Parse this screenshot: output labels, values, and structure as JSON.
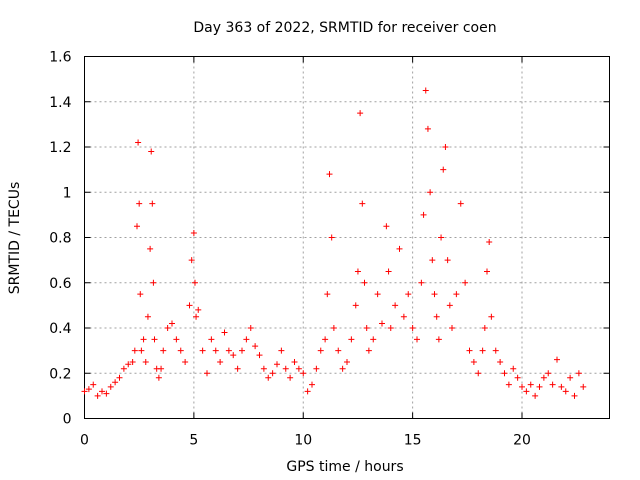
{
  "chart_data": {
    "type": "scatter",
    "title": "Day 363 of 2022, SRMTID for receiver coen",
    "xlabel": "GPS time / hours",
    "ylabel": "SRMTID / TECUs",
    "xlim": [
      0,
      24
    ],
    "ylim": [
      0,
      1.6
    ],
    "xticks": [
      0,
      5,
      10,
      15,
      20
    ],
    "xtick_labels": [
      "0",
      "5",
      "10",
      "15",
      "20"
    ],
    "yticks": [
      0,
      0.2,
      0.4,
      0.6,
      0.8,
      1,
      1.2,
      1.4,
      1.6
    ],
    "ytick_labels": [
      "0",
      "0.2",
      "0.4",
      "0.6",
      "0.8",
      "1",
      "1.2",
      "1.4",
      "1.6"
    ],
    "grid": true,
    "marker": "+",
    "color": "#ff0000",
    "series": [
      {
        "name": "SRMTID",
        "x": [
          0.0,
          0.2,
          0.4,
          0.6,
          0.8,
          1.0,
          1.2,
          1.4,
          1.6,
          1.8,
          2.0,
          2.2,
          2.3,
          2.4,
          2.45,
          2.5,
          2.55,
          2.6,
          2.7,
          2.8,
          2.9,
          3.0,
          3.05,
          3.1,
          3.15,
          3.2,
          3.3,
          3.4,
          3.5,
          3.6,
          3.8,
          4.0,
          4.2,
          4.4,
          4.6,
          4.8,
          4.9,
          5.0,
          5.05,
          5.1,
          5.2,
          5.4,
          5.6,
          5.8,
          6.0,
          6.2,
          6.4,
          6.6,
          6.8,
          7.0,
          7.2,
          7.4,
          7.6,
          7.8,
          8.0,
          8.2,
          8.4,
          8.6,
          8.8,
          9.0,
          9.2,
          9.4,
          9.6,
          9.8,
          10.0,
          10.2,
          10.4,
          10.6,
          10.8,
          11.0,
          11.1,
          11.2,
          11.3,
          11.4,
          11.6,
          11.8,
          12.0,
          12.2,
          12.4,
          12.5,
          12.6,
          12.7,
          12.8,
          12.9,
          13.0,
          13.2,
          13.4,
          13.6,
          13.8,
          13.9,
          14.0,
          14.2,
          14.4,
          14.6,
          14.8,
          15.0,
          15.2,
          15.4,
          15.5,
          15.6,
          15.7,
          15.8,
          15.9,
          16.0,
          16.1,
          16.2,
          16.3,
          16.4,
          16.5,
          16.6,
          16.7,
          16.8,
          17.0,
          17.2,
          17.4,
          17.6,
          17.8,
          18.0,
          18.2,
          18.3,
          18.4,
          18.5,
          18.6,
          18.8,
          19.0,
          19.2,
          19.4,
          19.6,
          19.8,
          20.0,
          20.2,
          20.4,
          20.6,
          20.8,
          21.0,
          21.2,
          21.4,
          21.6,
          21.8,
          22.0,
          22.2,
          22.4,
          22.6,
          22.8
        ],
        "y": [
          0.12,
          0.13,
          0.15,
          0.1,
          0.12,
          0.11,
          0.14,
          0.16,
          0.18,
          0.22,
          0.24,
          0.25,
          0.3,
          0.85,
          1.22,
          0.95,
          0.55,
          0.3,
          0.35,
          0.25,
          0.45,
          0.75,
          1.18,
          0.95,
          0.6,
          0.35,
          0.22,
          0.18,
          0.22,
          0.3,
          0.4,
          0.42,
          0.35,
          0.3,
          0.25,
          0.5,
          0.7,
          0.82,
          0.6,
          0.45,
          0.48,
          0.3,
          0.2,
          0.35,
          0.3,
          0.25,
          0.38,
          0.3,
          0.28,
          0.22,
          0.3,
          0.35,
          0.4,
          0.32,
          0.28,
          0.22,
          0.18,
          0.2,
          0.24,
          0.3,
          0.22,
          0.18,
          0.25,
          0.22,
          0.2,
          0.12,
          0.15,
          0.22,
          0.3,
          0.35,
          0.55,
          1.08,
          0.8,
          0.4,
          0.3,
          0.22,
          0.25,
          0.35,
          0.5,
          0.65,
          1.35,
          0.95,
          0.6,
          0.4,
          0.3,
          0.35,
          0.55,
          0.42,
          0.85,
          0.65,
          0.4,
          0.5,
          0.75,
          0.45,
          0.55,
          0.4,
          0.35,
          0.6,
          0.9,
          1.45,
          1.28,
          1.0,
          0.7,
          0.55,
          0.45,
          0.35,
          0.8,
          1.1,
          1.2,
          0.7,
          0.5,
          0.4,
          0.55,
          0.95,
          0.6,
          0.3,
          0.25,
          0.2,
          0.3,
          0.4,
          0.65,
          0.78,
          0.45,
          0.3,
          0.25,
          0.2,
          0.15,
          0.22,
          0.18,
          0.14,
          0.12,
          0.15,
          0.1,
          0.14,
          0.18,
          0.2,
          0.15,
          0.26,
          0.14,
          0.12,
          0.18,
          0.1,
          0.2,
          0.14
        ]
      }
    ]
  }
}
